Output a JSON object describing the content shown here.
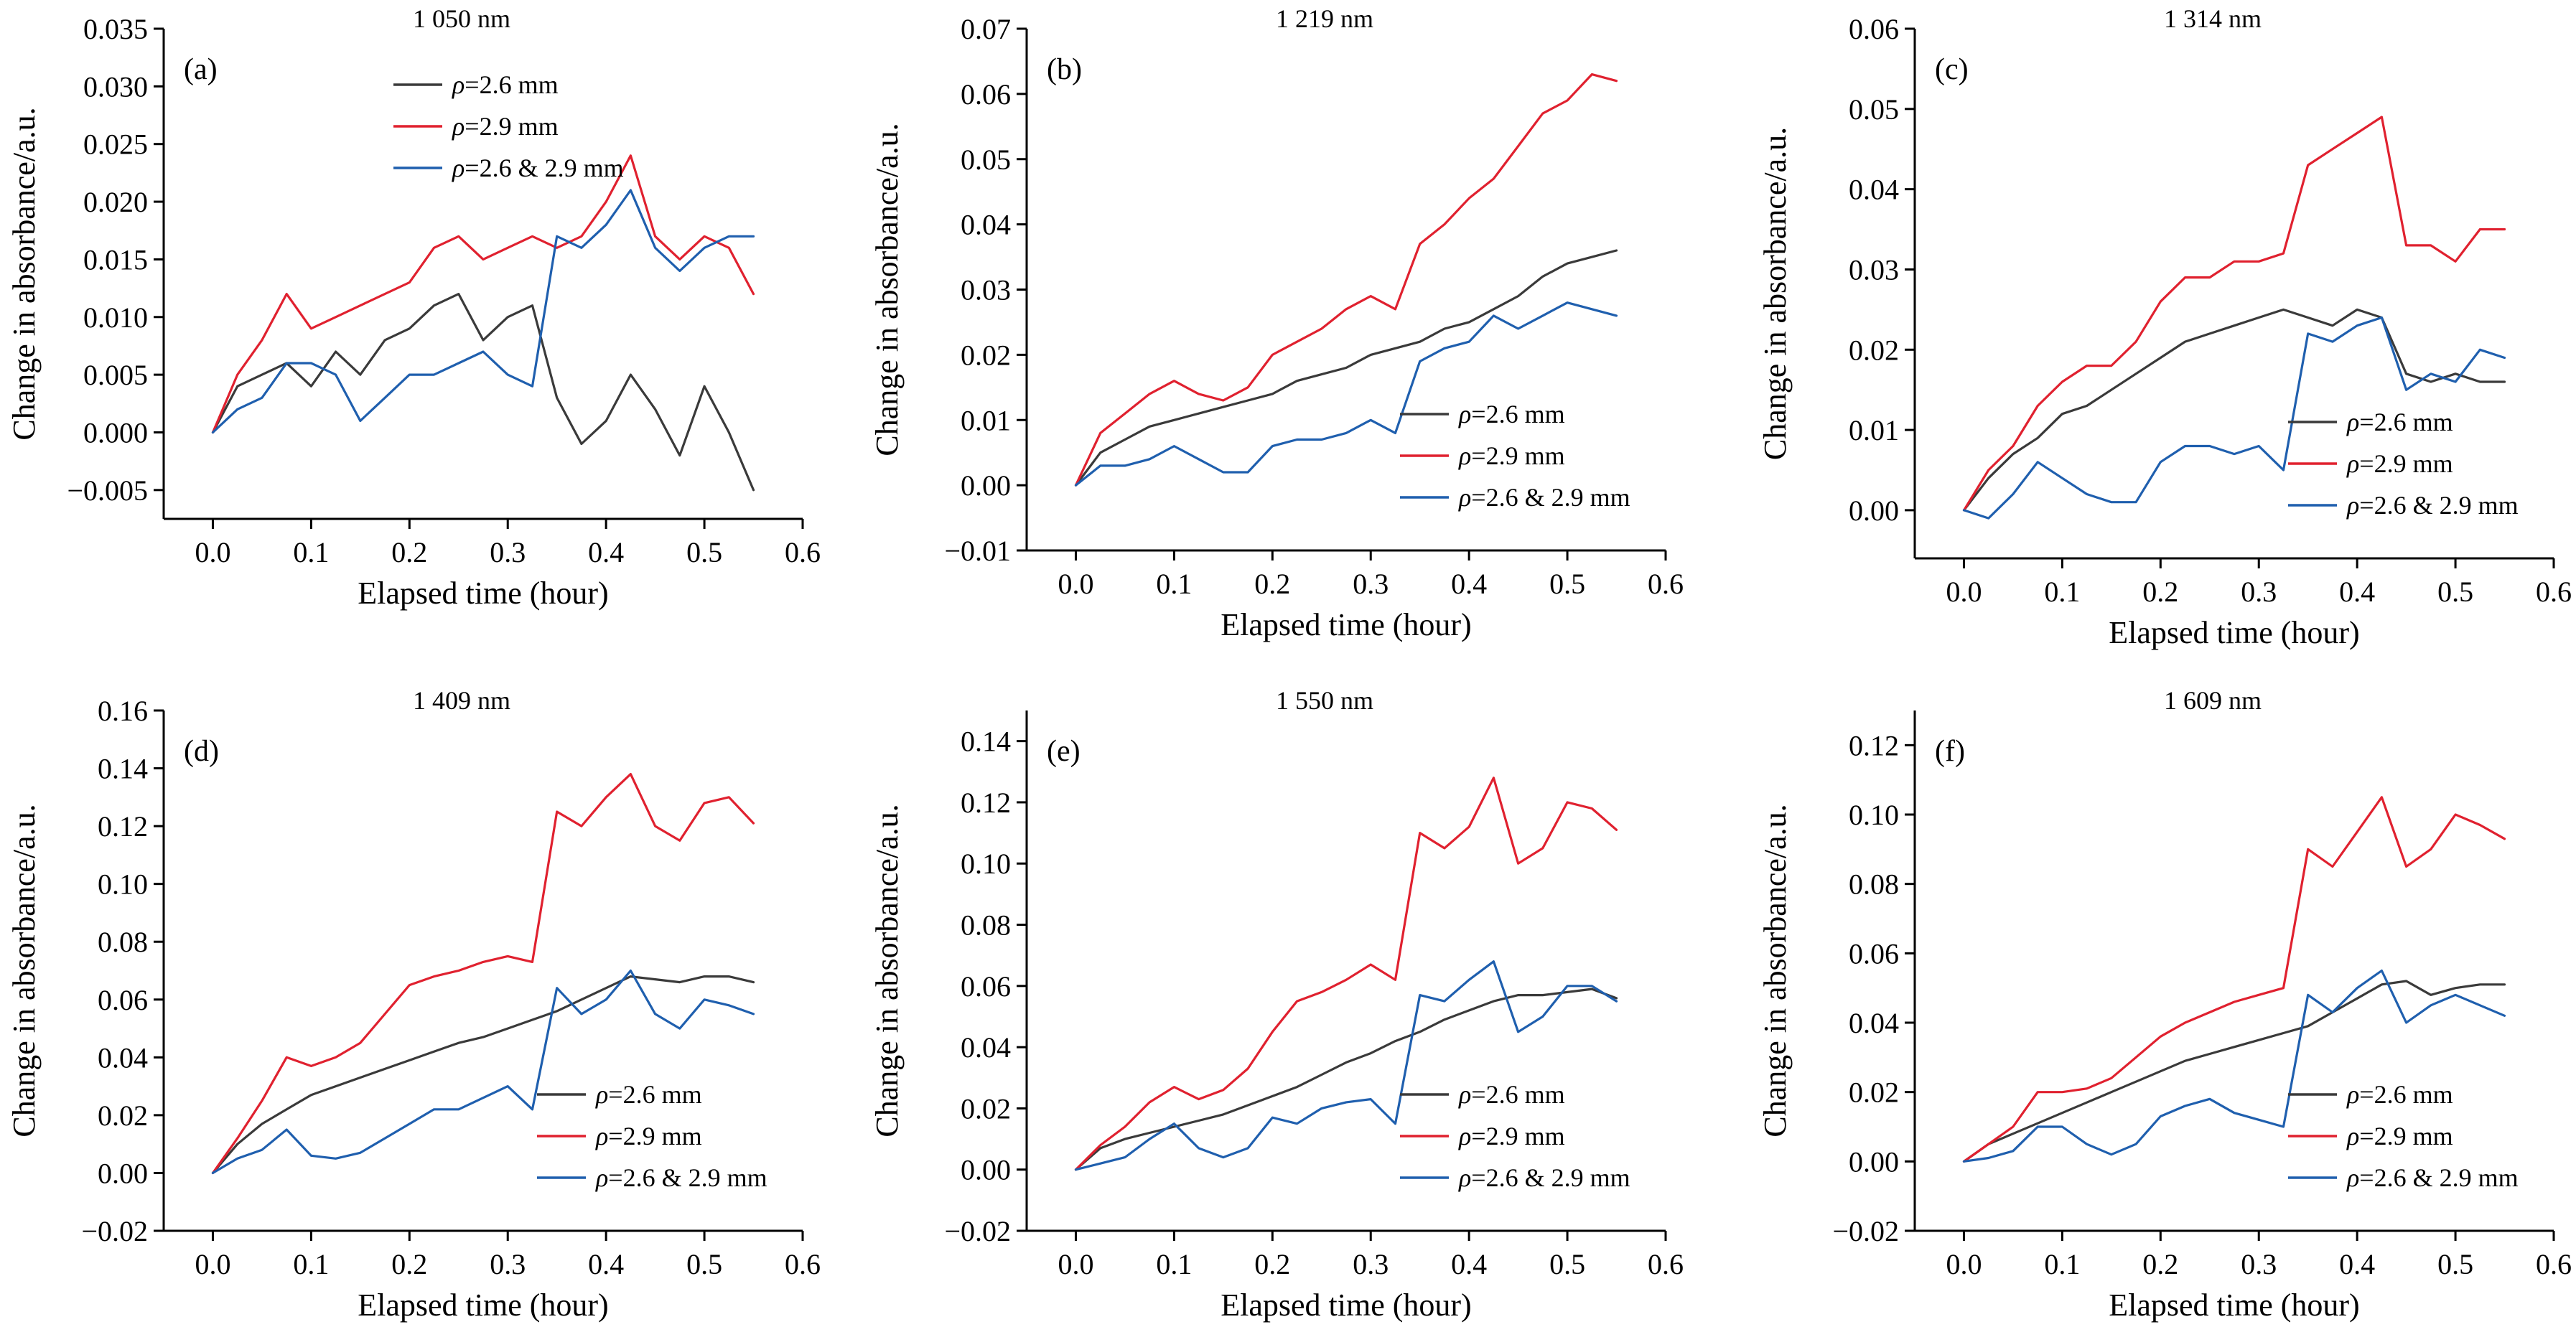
{
  "colors": {
    "rho_2_6": "#3a3a3a",
    "rho_2_9": "#e0212f",
    "rho_both": "#1f5fae"
  },
  "series_names": [
    "ρ=2.6 mm",
    "ρ=2.9 mm",
    "ρ=2.6 & 2.9 mm"
  ],
  "chart_data": [
    {
      "type": "line",
      "panel": "(a)",
      "title": "1 050 nm",
      "xlabel": "Elapsed time (hour)",
      "ylabel": "Change in absorbance/a.u.",
      "xlim": [
        -0.05,
        0.6
      ],
      "ylim": [
        -0.0075,
        0.035
      ],
      "xticks": [
        0.0,
        0.1,
        0.2,
        0.3,
        0.4,
        0.5,
        0.6
      ],
      "xtick_labels": [
        "0.0",
        "0.1",
        "0.2",
        "0.3",
        "0.4",
        "0.5",
        "0.6"
      ],
      "yticks": [
        -0.005,
        0.0,
        0.005,
        0.01,
        0.015,
        0.02,
        0.025,
        0.03,
        0.035
      ],
      "ytick_labels": [
        "−0.005",
        "0.000",
        "0.005",
        "0.010",
        "0.015",
        "0.020",
        "0.025",
        "0.030",
        "0.035"
      ],
      "legend": "top-center",
      "x": [
        0.0,
        0.025,
        0.05,
        0.075,
        0.1,
        0.125,
        0.15,
        0.175,
        0.2,
        0.225,
        0.25,
        0.275,
        0.3,
        0.325,
        0.35,
        0.375,
        0.4,
        0.425,
        0.45,
        0.475,
        0.5,
        0.525,
        0.55
      ],
      "series": [
        {
          "name": "ρ=2.6 mm",
          "values": [
            0.0,
            0.004,
            0.005,
            0.006,
            0.004,
            0.007,
            0.005,
            0.008,
            0.009,
            0.011,
            0.012,
            0.008,
            0.01,
            0.011,
            0.003,
            -0.001,
            0.001,
            0.005,
            0.002,
            -0.002,
            0.004,
            0.0,
            -0.005
          ]
        },
        {
          "name": "ρ=2.9 mm",
          "values": [
            0.0,
            0.005,
            0.008,
            0.012,
            0.009,
            0.01,
            0.011,
            0.012,
            0.013,
            0.016,
            0.017,
            0.015,
            0.016,
            0.017,
            0.016,
            0.017,
            0.02,
            0.024,
            0.017,
            0.015,
            0.017,
            0.016,
            0.012
          ]
        },
        {
          "name": "ρ=2.6 & 2.9 mm",
          "values": [
            0.0,
            0.002,
            0.003,
            0.006,
            0.006,
            0.005,
            0.001,
            0.003,
            0.005,
            0.005,
            0.006,
            0.007,
            0.005,
            0.004,
            0.017,
            0.016,
            0.018,
            0.021,
            0.016,
            0.014,
            0.016,
            0.017,
            0.017
          ]
        }
      ]
    },
    {
      "type": "line",
      "panel": "(b)",
      "title": "1 219 nm",
      "xlabel": "Elapsed time (hour)",
      "ylabel": "Change in absorbance/a.u.",
      "xlim": [
        -0.05,
        0.6
      ],
      "ylim": [
        -0.01,
        0.07
      ],
      "xticks": [
        0.0,
        0.1,
        0.2,
        0.3,
        0.4,
        0.5,
        0.6
      ],
      "xtick_labels": [
        "0.0",
        "0.1",
        "0.2",
        "0.3",
        "0.4",
        "0.5",
        "0.6"
      ],
      "yticks": [
        -0.01,
        0.0,
        0.01,
        0.02,
        0.03,
        0.04,
        0.05,
        0.06,
        0.07
      ],
      "ytick_labels": [
        "−0.01",
        "0.00",
        "0.01",
        "0.02",
        "0.03",
        "0.04",
        "0.05",
        "0.06",
        "0.07"
      ],
      "legend": "bottom-right",
      "x": [
        0.0,
        0.025,
        0.05,
        0.075,
        0.1,
        0.125,
        0.15,
        0.175,
        0.2,
        0.225,
        0.25,
        0.275,
        0.3,
        0.325,
        0.35,
        0.375,
        0.4,
        0.425,
        0.45,
        0.475,
        0.5,
        0.525,
        0.55
      ],
      "series": [
        {
          "name": "ρ=2.6 mm",
          "values": [
            0.0,
            0.005,
            0.007,
            0.009,
            0.01,
            0.011,
            0.012,
            0.013,
            0.014,
            0.016,
            0.017,
            0.018,
            0.02,
            0.021,
            0.022,
            0.024,
            0.025,
            0.027,
            0.029,
            0.032,
            0.034,
            0.035,
            0.036
          ]
        },
        {
          "name": "ρ=2.9 mm",
          "values": [
            0.0,
            0.008,
            0.011,
            0.014,
            0.016,
            0.014,
            0.013,
            0.015,
            0.02,
            0.022,
            0.024,
            0.027,
            0.029,
            0.027,
            0.037,
            0.04,
            0.044,
            0.047,
            0.052,
            0.057,
            0.059,
            0.063,
            0.062
          ]
        },
        {
          "name": "ρ=2.6 & 2.9 mm",
          "values": [
            0.0,
            0.003,
            0.003,
            0.004,
            0.006,
            0.004,
            0.002,
            0.002,
            0.006,
            0.007,
            0.007,
            0.008,
            0.01,
            0.008,
            0.019,
            0.021,
            0.022,
            0.026,
            0.024,
            0.026,
            0.028,
            0.027,
            0.026
          ]
        }
      ]
    },
    {
      "type": "line",
      "panel": "(c)",
      "title": "1 314 nm",
      "xlabel": "Elapsed time (hour)",
      "ylabel": "Change in absorbance/a.u.",
      "xlim": [
        -0.05,
        0.6
      ],
      "ylim": [
        -0.006,
        0.06
      ],
      "xticks": [
        0.0,
        0.1,
        0.2,
        0.3,
        0.4,
        0.5,
        0.6
      ],
      "xtick_labels": [
        "0.0",
        "0.1",
        "0.2",
        "0.3",
        "0.4",
        "0.5",
        "0.6"
      ],
      "yticks": [
        0.0,
        0.01,
        0.02,
        0.03,
        0.04,
        0.05,
        0.06
      ],
      "ytick_labels": [
        "0.00",
        "0.01",
        "0.02",
        "0.03",
        "0.04",
        "0.05",
        "0.06"
      ],
      "legend": "bottom-right",
      "x": [
        0.0,
        0.025,
        0.05,
        0.075,
        0.1,
        0.125,
        0.15,
        0.175,
        0.2,
        0.225,
        0.25,
        0.275,
        0.3,
        0.325,
        0.35,
        0.375,
        0.4,
        0.425,
        0.45,
        0.475,
        0.5,
        0.525,
        0.55
      ],
      "series": [
        {
          "name": "ρ=2.6 mm",
          "values": [
            0.0,
            0.004,
            0.007,
            0.009,
            0.012,
            0.013,
            0.015,
            0.017,
            0.019,
            0.021,
            0.022,
            0.023,
            0.024,
            0.025,
            0.024,
            0.023,
            0.025,
            0.024,
            0.017,
            0.016,
            0.017,
            0.016,
            0.016
          ]
        },
        {
          "name": "ρ=2.9 mm",
          "values": [
            0.0,
            0.005,
            0.008,
            0.013,
            0.016,
            0.018,
            0.018,
            0.021,
            0.026,
            0.029,
            0.029,
            0.031,
            0.031,
            0.032,
            0.043,
            0.045,
            0.047,
            0.049,
            0.033,
            0.033,
            0.031,
            0.035,
            0.035
          ]
        },
        {
          "name": "ρ=2.6 & 2.9 mm",
          "values": [
            0.0,
            -0.001,
            0.002,
            0.006,
            0.004,
            0.002,
            0.001,
            0.001,
            0.006,
            0.008,
            0.008,
            0.007,
            0.008,
            0.005,
            0.022,
            0.021,
            0.023,
            0.024,
            0.015,
            0.017,
            0.016,
            0.02,
            0.019
          ]
        }
      ]
    },
    {
      "type": "line",
      "panel": "(d)",
      "title": "1 409 nm",
      "xlabel": "Elapsed time (hour)",
      "ylabel": "Change in absorbance/a.u.",
      "xlim": [
        -0.05,
        0.6
      ],
      "ylim": [
        -0.02,
        0.16
      ],
      "xticks": [
        0.0,
        0.1,
        0.2,
        0.3,
        0.4,
        0.5,
        0.6
      ],
      "xtick_labels": [
        "0.0",
        "0.1",
        "0.2",
        "0.3",
        "0.4",
        "0.5",
        "0.6"
      ],
      "yticks": [
        -0.02,
        0.0,
        0.02,
        0.04,
        0.06,
        0.08,
        0.1,
        0.12,
        0.14,
        0.16
      ],
      "ytick_labels": [
        "−0.02",
        "0.00",
        "0.02",
        "0.04",
        "0.06",
        "0.08",
        "0.10",
        "0.12",
        "0.14",
        "0.16"
      ],
      "legend": "bottom-right",
      "x": [
        0.0,
        0.025,
        0.05,
        0.075,
        0.1,
        0.125,
        0.15,
        0.175,
        0.2,
        0.225,
        0.25,
        0.275,
        0.3,
        0.325,
        0.35,
        0.375,
        0.4,
        0.425,
        0.45,
        0.475,
        0.5,
        0.525,
        0.55
      ],
      "series": [
        {
          "name": "ρ=2.6 mm",
          "values": [
            0.0,
            0.01,
            0.017,
            0.022,
            0.027,
            0.03,
            0.033,
            0.036,
            0.039,
            0.042,
            0.045,
            0.047,
            0.05,
            0.053,
            0.056,
            0.06,
            0.064,
            0.068,
            0.067,
            0.066,
            0.068,
            0.068,
            0.066
          ]
        },
        {
          "name": "ρ=2.9 mm",
          "values": [
            0.0,
            0.012,
            0.025,
            0.04,
            0.037,
            0.04,
            0.045,
            0.055,
            0.065,
            0.068,
            0.07,
            0.073,
            0.075,
            0.073,
            0.125,
            0.12,
            0.13,
            0.138,
            0.12,
            0.115,
            0.128,
            0.13,
            0.121
          ]
        },
        {
          "name": "ρ=2.6 & 2.9 mm",
          "values": [
            0.0,
            0.005,
            0.008,
            0.015,
            0.006,
            0.005,
            0.007,
            0.012,
            0.017,
            0.022,
            0.022,
            0.026,
            0.03,
            0.022,
            0.064,
            0.055,
            0.06,
            0.07,
            0.055,
            0.05,
            0.06,
            0.058,
            0.055
          ]
        }
      ]
    },
    {
      "type": "line",
      "panel": "(e)",
      "title": "1 550 nm",
      "xlabel": "Elapsed time (hour)",
      "ylabel": "Change in absorbance/a.u.",
      "xlim": [
        -0.05,
        0.6
      ],
      "ylim": [
        -0.02,
        0.15
      ],
      "xticks": [
        0.0,
        0.1,
        0.2,
        0.3,
        0.4,
        0.5,
        0.6
      ],
      "xtick_labels": [
        "0.0",
        "0.1",
        "0.2",
        "0.3",
        "0.4",
        "0.5",
        "0.6"
      ],
      "yticks": [
        -0.02,
        0.0,
        0.02,
        0.04,
        0.06,
        0.08,
        0.1,
        0.12,
        0.14
      ],
      "ytick_labels": [
        "−0.02",
        "0.00",
        "0.02",
        "0.04",
        "0.06",
        "0.08",
        "0.10",
        "0.12",
        "0.14"
      ],
      "legend": "bottom-right",
      "x": [
        0.0,
        0.025,
        0.05,
        0.075,
        0.1,
        0.125,
        0.15,
        0.175,
        0.2,
        0.225,
        0.25,
        0.275,
        0.3,
        0.325,
        0.35,
        0.375,
        0.4,
        0.425,
        0.45,
        0.475,
        0.5,
        0.525,
        0.55
      ],
      "series": [
        {
          "name": "ρ=2.6 mm",
          "values": [
            0.0,
            0.007,
            0.01,
            0.012,
            0.014,
            0.016,
            0.018,
            0.021,
            0.024,
            0.027,
            0.031,
            0.035,
            0.038,
            0.042,
            0.045,
            0.049,
            0.052,
            0.055,
            0.057,
            0.057,
            0.058,
            0.059,
            0.056
          ]
        },
        {
          "name": "ρ=2.9 mm",
          "values": [
            0.0,
            0.008,
            0.014,
            0.022,
            0.027,
            0.023,
            0.026,
            0.033,
            0.045,
            0.055,
            0.058,
            0.062,
            0.067,
            0.062,
            0.11,
            0.105,
            0.112,
            0.128,
            0.1,
            0.105,
            0.12,
            0.118,
            0.111
          ]
        },
        {
          "name": "ρ=2.6 & 2.9 mm",
          "values": [
            0.0,
            0.002,
            0.004,
            0.01,
            0.015,
            0.007,
            0.004,
            0.007,
            0.017,
            0.015,
            0.02,
            0.022,
            0.023,
            0.015,
            0.057,
            0.055,
            0.062,
            0.068,
            0.045,
            0.05,
            0.06,
            0.06,
            0.055
          ]
        }
      ]
    },
    {
      "type": "line",
      "panel": "(f)",
      "title": "1 609 nm",
      "xlabel": "Elapsed time (hour)",
      "ylabel": "Change in absorbance/a.u.",
      "xlim": [
        -0.05,
        0.6
      ],
      "ylim": [
        -0.02,
        0.13
      ],
      "xticks": [
        0.0,
        0.1,
        0.2,
        0.3,
        0.4,
        0.5,
        0.6
      ],
      "xtick_labels": [
        "0.0",
        "0.1",
        "0.2",
        "0.3",
        "0.4",
        "0.5",
        "0.6"
      ],
      "yticks": [
        -0.02,
        0.0,
        0.02,
        0.04,
        0.06,
        0.08,
        0.1,
        0.12
      ],
      "ytick_labels": [
        "−0.02",
        "0.00",
        "0.02",
        "0.04",
        "0.06",
        "0.08",
        "0.10",
        "0.12"
      ],
      "legend": "bottom-right",
      "x": [
        0.0,
        0.025,
        0.05,
        0.075,
        0.1,
        0.125,
        0.15,
        0.175,
        0.2,
        0.225,
        0.25,
        0.275,
        0.3,
        0.325,
        0.35,
        0.375,
        0.4,
        0.425,
        0.45,
        0.475,
        0.5,
        0.525,
        0.55
      ],
      "series": [
        {
          "name": "ρ=2.6 mm",
          "values": [
            0.0,
            0.005,
            0.008,
            0.011,
            0.014,
            0.017,
            0.02,
            0.023,
            0.026,
            0.029,
            0.031,
            0.033,
            0.035,
            0.037,
            0.039,
            0.043,
            0.047,
            0.051,
            0.052,
            0.048,
            0.05,
            0.051,
            0.051
          ]
        },
        {
          "name": "ρ=2.9 mm",
          "values": [
            0.0,
            0.005,
            0.01,
            0.02,
            0.02,
            0.021,
            0.024,
            0.03,
            0.036,
            0.04,
            0.043,
            0.046,
            0.048,
            0.05,
            0.09,
            0.085,
            0.095,
            0.105,
            0.085,
            0.09,
            0.1,
            0.097,
            0.093
          ]
        },
        {
          "name": "ρ=2.6 & 2.9 mm",
          "values": [
            0.0,
            0.001,
            0.003,
            0.01,
            0.01,
            0.005,
            0.002,
            0.005,
            0.013,
            0.016,
            0.018,
            0.014,
            0.012,
            0.01,
            0.048,
            0.043,
            0.05,
            0.055,
            0.04,
            0.045,
            0.048,
            0.045,
            0.042
          ]
        }
      ]
    }
  ]
}
